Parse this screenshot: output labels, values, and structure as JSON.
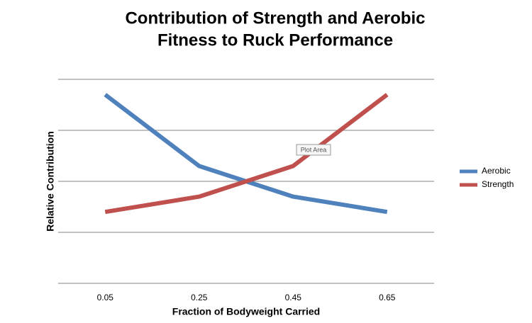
{
  "chart_data": {
    "type": "line",
    "title": [
      "Contribution of Strength and Aerobic",
      "Fitness to Ruck Performance"
    ],
    "x_label": "Fraction of Bodyweight Carried",
    "y_label": "Relative Contribution",
    "categories": [
      "0.05",
      "0.25",
      "0.45",
      "0.65"
    ],
    "series": [
      {
        "name": "Aerobic",
        "color": "#4f81bd",
        "values": [
          3.7,
          2.3,
          1.7,
          1.4
        ]
      },
      {
        "name": "Strength",
        "color": "#c0504d",
        "values": [
          1.4,
          1.7,
          2.3,
          3.7
        ]
      }
    ],
    "ylim": [
      0,
      4
    ],
    "yticks": [
      0,
      1,
      2,
      3,
      4
    ],
    "ytick_labels_shown": false,
    "grid": true,
    "legend": "right",
    "tooltip": "Plot Area"
  }
}
